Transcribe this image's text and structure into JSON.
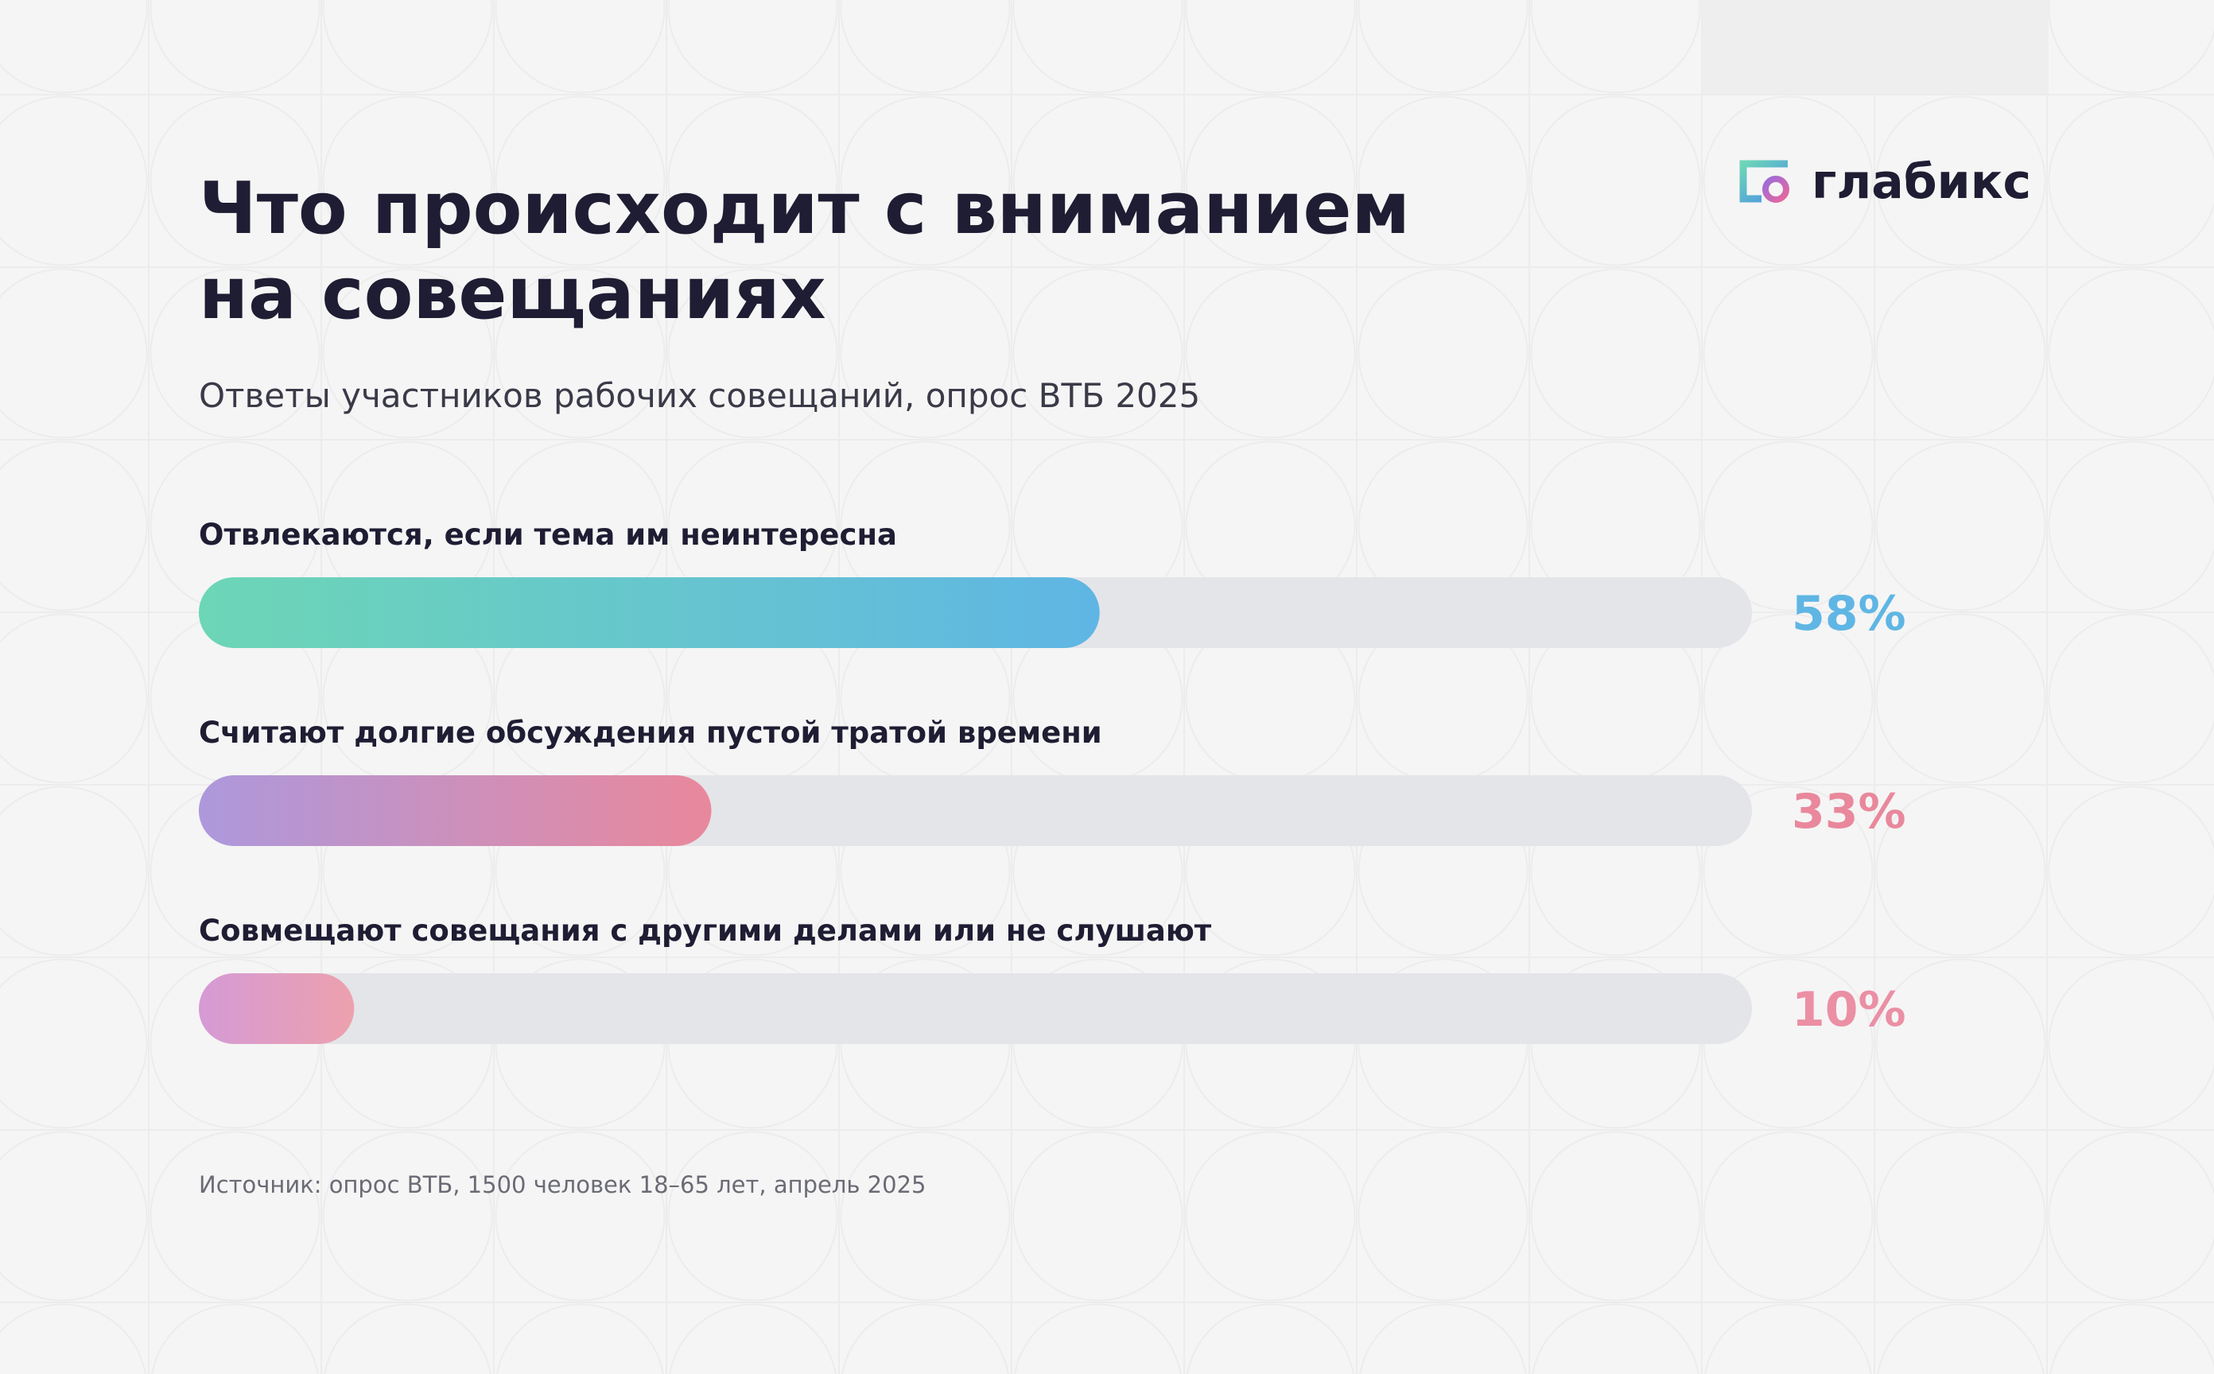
{
  "brand": "глабикс",
  "chart_data": {
    "type": "bar",
    "orientation": "horizontal",
    "title": [
      "Что происходит с вниманием",
      "на совещаниях"
    ],
    "subtitle": "Ответы участников рабочих совещаний, опрос ВТБ 2025",
    "categories": [
      "Отвлекаются, если тема им неинтересна",
      "Считают долгие обсуждения пустой тратой времени",
      "Совмещают совещания с другими делами или не слушают"
    ],
    "values": [
      58,
      33,
      10
    ],
    "value_labels": [
      "58%",
      "33%",
      "10%"
    ],
    "colors": [
      [
        "#6dd6b6",
        "#5fb6e4"
      ],
      [
        "#ad98dc",
        "#e9889c"
      ],
      [
        "#d59ad6",
        "#eda1ad"
      ]
    ],
    "label_colors": [
      "#5fb6e4",
      "#e9889c",
      "#eb8fa4"
    ],
    "xlim": [
      0,
      100
    ],
    "source": "Источник: опрос ВТБ, 1500 человек 18–65 лет, апрель 2025"
  }
}
